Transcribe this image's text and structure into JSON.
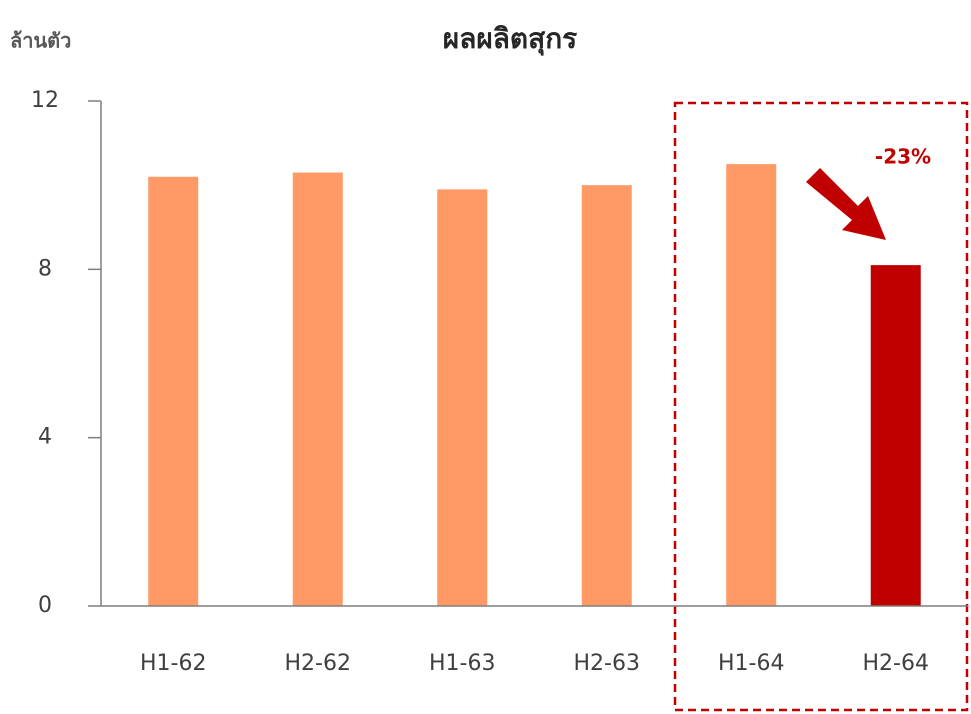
{
  "chart_data": {
    "type": "bar",
    "title": "ผลผลิตสุกร",
    "y_label": "ล้านตัว",
    "categories": [
      "H1-62",
      "H2-62",
      "H1-63",
      "H2-63",
      "H1-64",
      "H2-64"
    ],
    "values": [
      10.2,
      10.3,
      9.9,
      10.0,
      10.5,
      8.1
    ],
    "colors": [
      "#ff9966",
      "#ff9966",
      "#ff9966",
      "#ff9966",
      "#ff9966",
      "#c00000"
    ],
    "ylim": [
      0,
      12
    ],
    "yticks": [
      0,
      4,
      8,
      12
    ],
    "annotation": "-23%"
  }
}
